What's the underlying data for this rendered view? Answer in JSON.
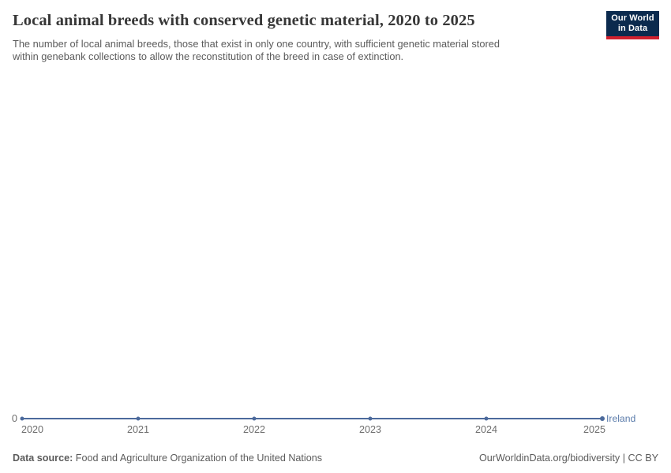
{
  "header": {
    "logo": {
      "line1": "Our World",
      "line2": "in Data"
    }
  },
  "chart_data": {
    "type": "line",
    "title": "Local animal breeds with conserved genetic material, 2020 to 2025",
    "subtitle_lines": [
      "The number of local animal breeds, those that exist in only one country, with sufficient genetic material stored",
      "within genebank collections to allow the reconstitution of the breed in case of extinction."
    ],
    "x": [
      2020,
      2021,
      2022,
      2023,
      2024,
      2025
    ],
    "x_ticks": [
      "2020",
      "2021",
      "2022",
      "2023",
      "2024",
      "2025"
    ],
    "series": [
      {
        "name": "Ireland",
        "values": [
          0,
          0,
          0,
          0,
          0,
          0
        ]
      }
    ],
    "ylabel": "",
    "yticks": [
      0
    ],
    "y_tick_label": "0",
    "grid": false,
    "legend_position": "end-of-line"
  },
  "footer": {
    "source_label": "Data source:",
    "source_value": "Food and Agriculture Organization of the United Nations",
    "rights": "OurWorldinData.org/biodiversity | CC BY"
  },
  "colors": {
    "line": "#4c6a9c",
    "entity_label": "#5b7cab",
    "text_gray": "#5b5b5b",
    "tick_gray": "#6e6e6e",
    "title": "#373737",
    "logo_navy": "#0b2a4e",
    "logo_red": "#d0202e"
  }
}
